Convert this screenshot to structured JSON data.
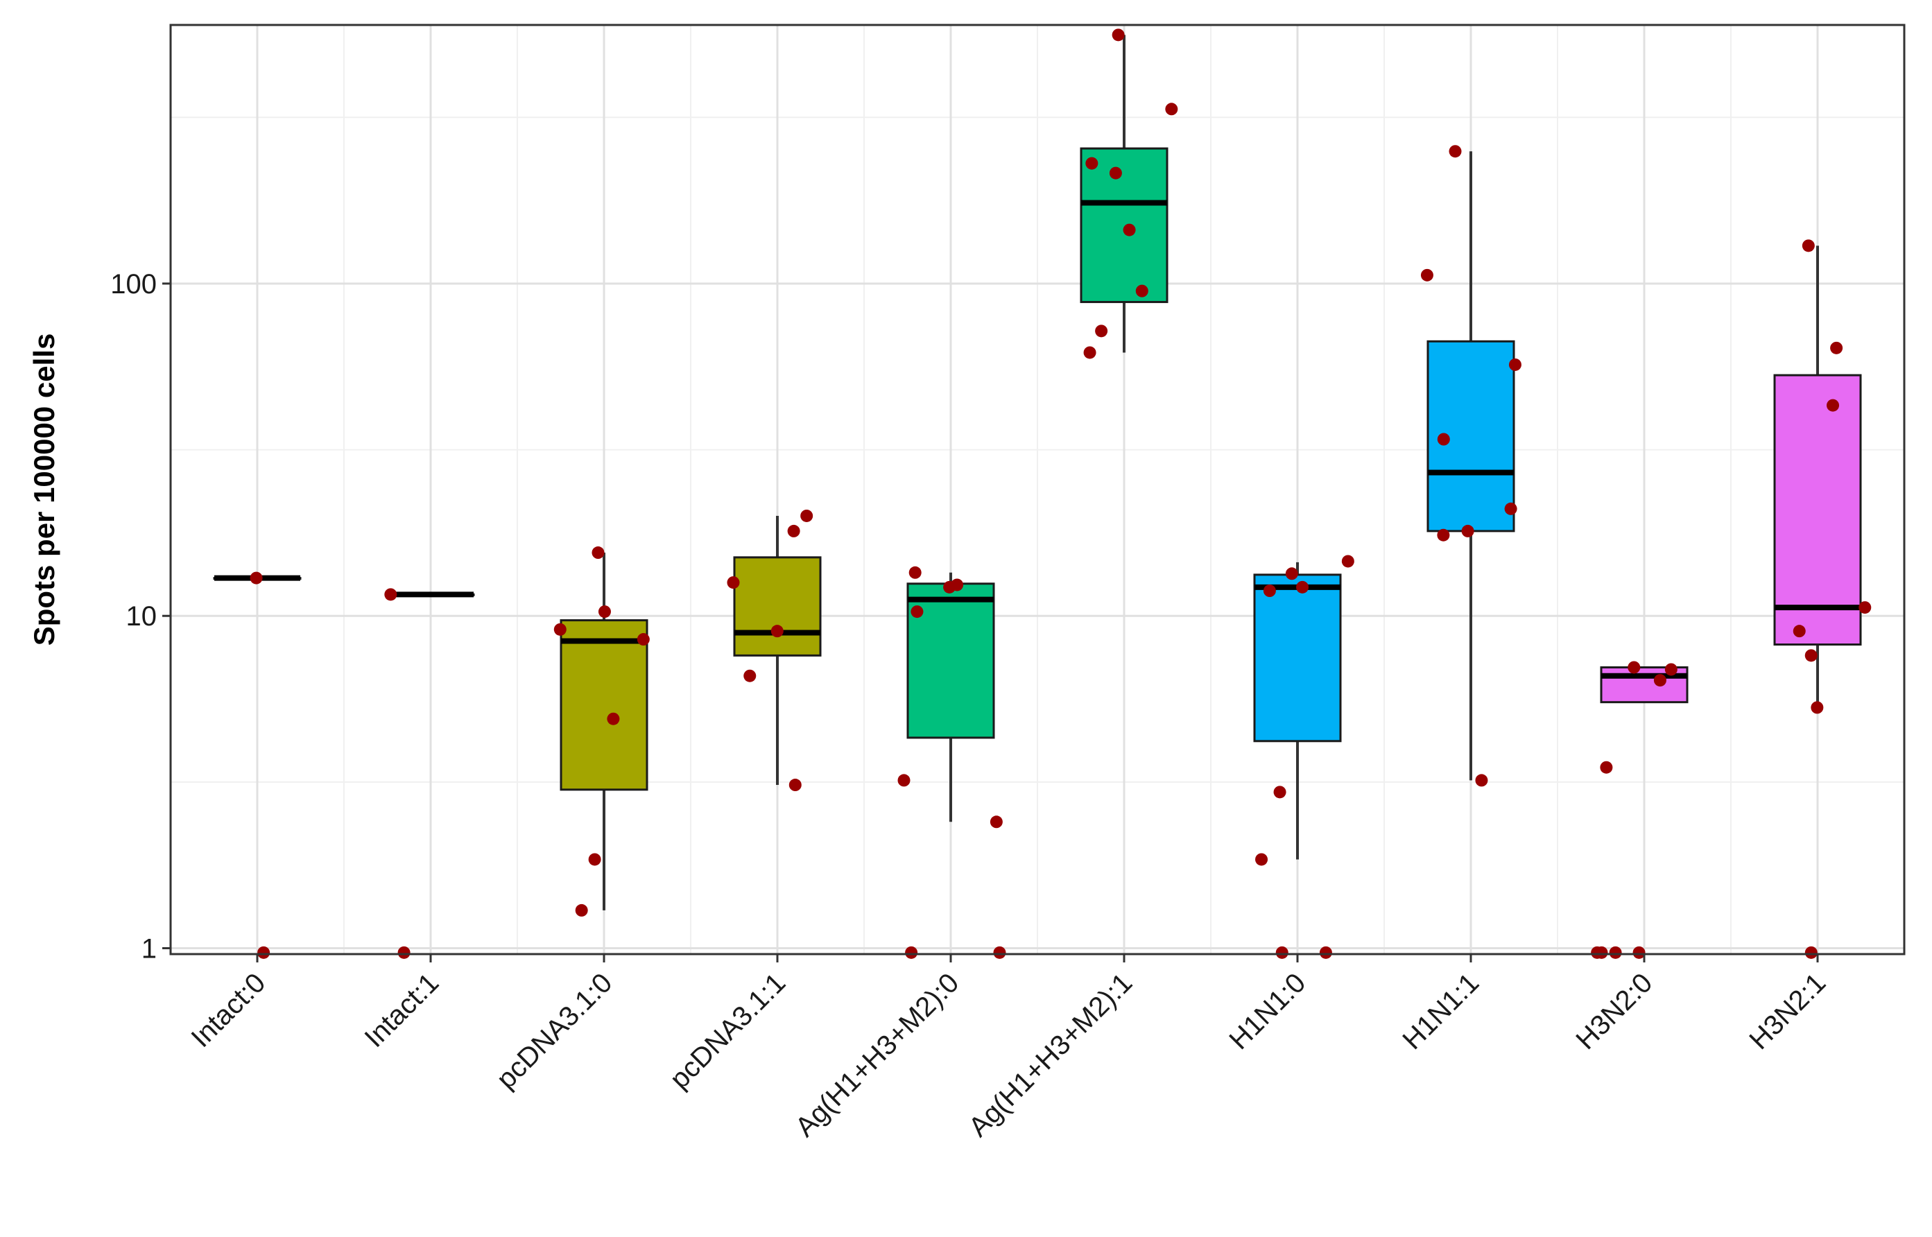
{
  "chart_data": {
    "type": "box",
    "ylabel": "Spots per 100000 cells",
    "xlabel": "",
    "title": "",
    "yscale": "log10",
    "ylim": [
      0.96,
      600
    ],
    "yticks": [
      1,
      10,
      100
    ],
    "ytick_labels": [
      "1",
      "10",
      "100"
    ],
    "grid": true,
    "legend": "none",
    "categories": [
      "Intact:0",
      "Intact:1",
      "pcDNA3.1:0",
      "pcDNA3.1:1",
      "Ag(H1+H3+M2):0",
      "Ag(H1+H3+M2):1",
      "H1N1:0",
      "H1N1:1",
      "H3N2:0",
      "H3N2:1"
    ],
    "boxes": [
      {
        "category": "Intact:0",
        "color": "#808080",
        "whisker_low": 13,
        "q1": 13,
        "median": 13,
        "q3": 13,
        "whisker_high": 13
      },
      {
        "category": "Intact:1",
        "color": "#808080",
        "whisker_low": 11.6,
        "q1": 11.6,
        "median": 11.6,
        "q3": 11.6,
        "whisker_high": 11.6
      },
      {
        "category": "pcDNA3.1:0",
        "color": "#A3A500",
        "whisker_low": 1.3,
        "q1": 3.0,
        "median": 8.4,
        "q3": 9.7,
        "whisker_high": 15.5
      },
      {
        "category": "pcDNA3.1:1",
        "color": "#A3A500",
        "whisker_low": 3.1,
        "q1": 7.6,
        "median": 8.9,
        "q3": 15.0,
        "whisker_high": 20.0
      },
      {
        "category": "Ag(H1+H3+M2):0",
        "color": "#00BF7D",
        "whisker_low": 2.4,
        "q1": 4.3,
        "median": 11.2,
        "q3": 12.5,
        "whisker_high": 13.5
      },
      {
        "category": "Ag(H1+H3+M2):1",
        "color": "#00BF7D",
        "whisker_low": 62,
        "q1": 88,
        "median": 175,
        "q3": 255,
        "whisker_high": 560
      },
      {
        "category": "H1N1:0",
        "color": "#00B0F6",
        "whisker_low": 1.85,
        "q1": 4.2,
        "median": 12.2,
        "q3": 13.3,
        "whisker_high": 14.5
      },
      {
        "category": "H1N1:1",
        "color": "#00B0F6",
        "whisker_low": 3.2,
        "q1": 18,
        "median": 27,
        "q3": 67,
        "whisker_high": 250
      },
      {
        "category": "H3N2:0",
        "color": "#E76BF3",
        "whisker_low": 5.5,
        "q1": 5.5,
        "median": 6.6,
        "q3": 7.0,
        "whisker_high": 7.0
      },
      {
        "category": "H3N2:1",
        "color": "#E76BF3",
        "whisker_low": 5.3,
        "q1": 8.2,
        "median": 10.6,
        "q3": 53,
        "whisker_high": 130
      }
    ],
    "points": [
      {
        "category": "Intact:0",
        "values": [
          13,
          0.97
        ]
      },
      {
        "category": "Intact:1",
        "values": [
          11.6,
          0.97
        ]
      },
      {
        "category": "pcDNA3.1:0",
        "values": [
          15.5,
          10.3,
          9.1,
          8.5,
          4.9,
          1.85,
          1.3
        ]
      },
      {
        "category": "pcDNA3.1:1",
        "values": [
          20.0,
          18.0,
          12.6,
          9.0,
          6.6,
          3.1
        ]
      },
      {
        "category": "Ag(H1+H3+M2):0",
        "values": [
          13.5,
          12.4,
          12.2,
          10.3,
          3.2,
          2.4,
          0.97,
          0.97
        ]
      },
      {
        "category": "Ag(H1+H3+M2):1",
        "values": [
          560,
          335,
          230,
          215,
          145,
          95,
          72,
          62
        ]
      },
      {
        "category": "H1N1:0",
        "values": [
          14.6,
          13.4,
          11.9,
          12.2,
          2.95,
          1.85,
          0.97,
          0.97
        ]
      },
      {
        "category": "H1N1:1",
        "values": [
          250,
          106,
          57,
          34,
          21,
          18,
          17.5,
          3.2
        ]
      },
      {
        "category": "H3N2:0",
        "values": [
          7.0,
          6.9,
          6.4,
          3.5,
          0.97,
          0.97,
          0.97,
          0.97
        ]
      },
      {
        "category": "H3N2:1",
        "values": [
          130,
          64,
          43,
          10.6,
          9.0,
          7.6,
          5.3,
          0.97
        ]
      }
    ],
    "point_color": "#990000"
  }
}
